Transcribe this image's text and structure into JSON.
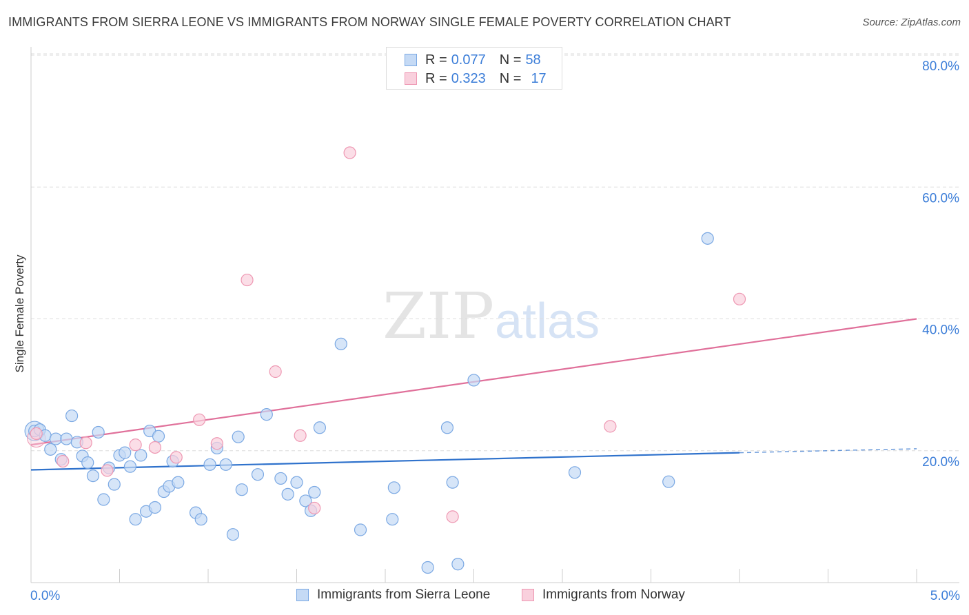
{
  "header": {
    "title": "IMMIGRANTS FROM SIERRA LEONE VS IMMIGRANTS FROM NORWAY SINGLE FEMALE POVERTY CORRELATION CHART",
    "source": "Source: ZipAtlas.com"
  },
  "watermark": {
    "zip": "ZIP",
    "atlas": "atlas"
  },
  "legend": {
    "rows": [
      {
        "r_label": "R =",
        "r_value": "0.077",
        "n_label": "N =",
        "n_value": "58"
      },
      {
        "r_label": "R =",
        "r_value": "0.323",
        "n_label": "N =",
        "n_value": "17"
      }
    ]
  },
  "bottom_legend": {
    "series1": "Immigrants from Sierra Leone",
    "series2": "Immigrants from Norway"
  },
  "colors": {
    "series1_fill": "#c5daf5",
    "series1_stroke": "#7aa8e3",
    "series1_line": "#2f72cc",
    "series2_fill": "#f9d0dd",
    "series2_stroke": "#ee97b2",
    "series2_line": "#e0709a",
    "tick_label": "#3b7dd8",
    "grid": "#dcdcdc"
  },
  "chart_data": {
    "type": "scatter",
    "title": "IMMIGRANTS FROM SIERRA LEONE VS IMMIGRANTS FROM NORWAY SINGLE FEMALE POVERTY CORRELATION CHART",
    "xlabel": "",
    "ylabel": "Single Female Poverty",
    "xlim": [
      0,
      5
    ],
    "ylim": [
      0,
      80
    ],
    "x_tick_labels": [
      "0.0%",
      "5.0%"
    ],
    "y_ticks": [
      20,
      40,
      60,
      80
    ],
    "y_tick_labels": [
      "20.0%",
      "40.0%",
      "60.0%",
      "80.0%"
    ],
    "series": [
      {
        "name": "Immigrants from Sierra Leone",
        "color": "#7aa8e3",
        "points": [
          [
            0.02,
            23.0
          ],
          [
            0.05,
            23.2
          ],
          [
            0.08,
            22.3
          ],
          [
            0.11,
            20.2
          ],
          [
            0.14,
            21.8
          ],
          [
            0.17,
            18.7
          ],
          [
            0.2,
            21.8
          ],
          [
            0.23,
            25.3
          ],
          [
            0.26,
            21.3
          ],
          [
            0.29,
            19.2
          ],
          [
            0.32,
            18.2
          ],
          [
            0.35,
            16.2
          ],
          [
            0.38,
            22.8
          ],
          [
            0.41,
            12.6
          ],
          [
            0.44,
            17.4
          ],
          [
            0.47,
            14.9
          ],
          [
            0.5,
            19.3
          ],
          [
            0.53,
            19.7
          ],
          [
            0.56,
            17.6
          ],
          [
            0.59,
            9.6
          ],
          [
            0.62,
            19.3
          ],
          [
            0.65,
            10.8
          ],
          [
            0.67,
            23.0
          ],
          [
            0.7,
            11.4
          ],
          [
            0.72,
            22.2
          ],
          [
            0.75,
            13.8
          ],
          [
            0.78,
            14.6
          ],
          [
            0.8,
            18.4
          ],
          [
            0.83,
            15.2
          ],
          [
            0.93,
            10.6
          ],
          [
            0.96,
            9.6
          ],
          [
            1.01,
            17.9
          ],
          [
            1.05,
            20.4
          ],
          [
            1.1,
            17.9
          ],
          [
            1.14,
            7.3
          ],
          [
            1.17,
            22.1
          ],
          [
            1.19,
            14.1
          ],
          [
            1.28,
            16.4
          ],
          [
            1.33,
            25.5
          ],
          [
            1.41,
            15.8
          ],
          [
            1.45,
            13.4
          ],
          [
            1.5,
            15.2
          ],
          [
            1.55,
            12.4
          ],
          [
            1.58,
            10.9
          ],
          [
            1.6,
            13.7
          ],
          [
            1.63,
            23.5
          ],
          [
            1.75,
            36.2
          ],
          [
            1.86,
            8.0
          ],
          [
            2.04,
            9.6
          ],
          [
            2.05,
            14.4
          ],
          [
            2.24,
            2.3
          ],
          [
            2.35,
            23.5
          ],
          [
            2.38,
            15.2
          ],
          [
            2.41,
            2.8
          ],
          [
            2.5,
            30.7
          ],
          [
            3.07,
            16.7
          ],
          [
            3.6,
            15.3
          ],
          [
            3.82,
            52.2
          ]
        ]
      },
      {
        "name": "Immigrants from Norway",
        "color": "#ee97b2",
        "points": [
          [
            0.03,
            22.6
          ],
          [
            0.18,
            18.4
          ],
          [
            0.31,
            21.2
          ],
          [
            0.43,
            17.0
          ],
          [
            0.59,
            20.9
          ],
          [
            0.7,
            20.5
          ],
          [
            0.82,
            19.0
          ],
          [
            0.95,
            24.7
          ],
          [
            1.05,
            21.1
          ],
          [
            1.22,
            45.9
          ],
          [
            1.38,
            32.0
          ],
          [
            1.52,
            22.3
          ],
          [
            1.6,
            11.3
          ],
          [
            1.8,
            65.2
          ],
          [
            2.38,
            10.0
          ],
          [
            3.27,
            23.7
          ],
          [
            4.0,
            43.0
          ]
        ]
      }
    ],
    "trend_lines": [
      {
        "series": "Immigrants from Sierra Leone",
        "x": [
          0.0,
          4.0
        ],
        "y": [
          17.1,
          19.7
        ],
        "dashed_extension_to_x": 5.0,
        "dashed_extension_y": 20.3
      },
      {
        "series": "Immigrants from Norway",
        "x": [
          0.0,
          5.0
        ],
        "y": [
          20.9,
          40.0
        ]
      }
    ]
  }
}
